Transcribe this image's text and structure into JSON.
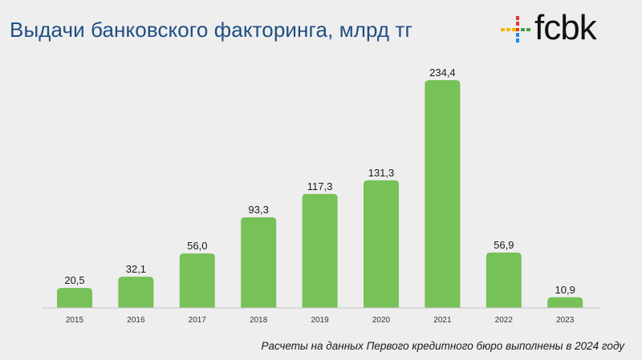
{
  "title": "Выдачи банковского факторинга, млрд тг",
  "logo": {
    "name": "fcbk",
    "icon": "fcbk-logo-icon",
    "colors": [
      "#e53935",
      "#f7b500",
      "#43a047",
      "#1e88e5"
    ]
  },
  "chart_data": {
    "type": "bar",
    "title": "Выдачи банковского факторинга, млрд тг",
    "categories": [
      "2015",
      "2016",
      "2017",
      "2018",
      "2019",
      "2020",
      "2021",
      "2022",
      "2023"
    ],
    "values": [
      20.5,
      32.1,
      56.0,
      93.3,
      117.3,
      131.3,
      234.4,
      56.9,
      10.9
    ],
    "value_labels": [
      "20,5",
      "32,1",
      "56,0",
      "93,3",
      "117,3",
      "131,3",
      "234,4",
      "56,9",
      "10,9"
    ],
    "bar_color": "#77c159",
    "xlabel": "",
    "ylabel": "",
    "ylim": [
      0,
      234.4
    ],
    "grid": false,
    "legend": "none"
  },
  "footnote": "Расчеты на данных Первого кредитного бюро выполнены в 2024 году"
}
